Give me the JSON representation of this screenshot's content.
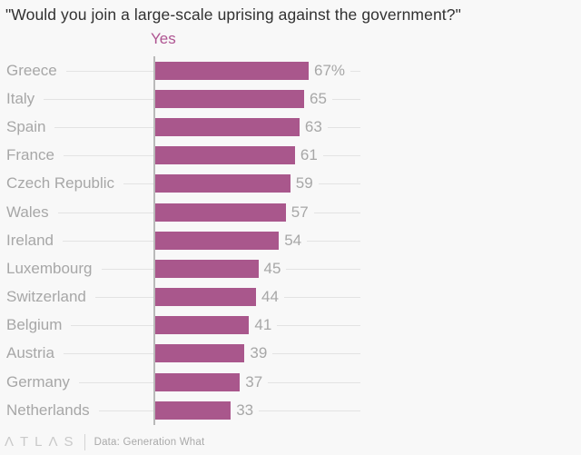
{
  "title": "\"Would you join a large-scale uprising against the government?\"",
  "legend": {
    "label": "Yes"
  },
  "chart_data": {
    "type": "bar",
    "orientation": "horizontal",
    "title": "\"Would you join a large-scale uprising against the government?\"",
    "series_label": "Yes",
    "categories": [
      "Greece",
      "Italy",
      "Spain",
      "France",
      "Czech Republic",
      "Wales",
      "Ireland",
      "Luxembourg",
      "Switzerland",
      "Belgium",
      "Austria",
      "Germany",
      "Netherlands"
    ],
    "values": [
      67,
      65,
      63,
      61,
      59,
      57,
      54,
      45,
      44,
      41,
      39,
      37,
      33
    ],
    "value_labels": [
      "67%",
      "65",
      "63",
      "61",
      "59",
      "57",
      "54",
      "45",
      "44",
      "41",
      "39",
      "37",
      "33"
    ],
    "unit": "%",
    "xlim": [
      0,
      67
    ],
    "grid": "row-rules",
    "legend_position": "top-left-of-plot",
    "bar_color": "#a9578c",
    "label_color": "#a7a7a7",
    "legend_color": "#af5592"
  },
  "footer": {
    "logo": "ΛTLΛS",
    "source": "Data: Generation What"
  }
}
